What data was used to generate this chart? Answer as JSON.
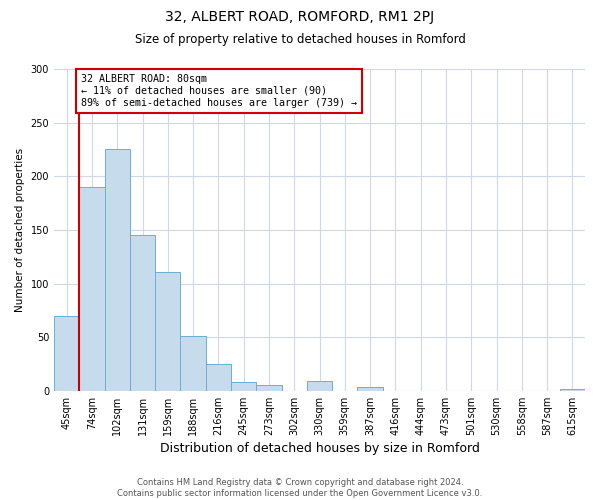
{
  "title": "32, ALBERT ROAD, ROMFORD, RM1 2PJ",
  "subtitle": "Size of property relative to detached houses in Romford",
  "xlabel": "Distribution of detached houses by size in Romford",
  "ylabel": "Number of detached properties",
  "bar_labels": [
    "45sqm",
    "74sqm",
    "102sqm",
    "131sqm",
    "159sqm",
    "188sqm",
    "216sqm",
    "245sqm",
    "273sqm",
    "302sqm",
    "330sqm",
    "359sqm",
    "387sqm",
    "416sqm",
    "444sqm",
    "473sqm",
    "501sqm",
    "530sqm",
    "558sqm",
    "587sqm",
    "615sqm"
  ],
  "bar_heights": [
    70,
    190,
    225,
    145,
    111,
    51,
    25,
    8,
    5,
    0,
    9,
    0,
    4,
    0,
    0,
    0,
    0,
    0,
    0,
    0,
    2
  ],
  "bar_color": "#c6dcec",
  "bar_edge_color": "#6baed6",
  "property_line_x": 1.0,
  "annotation_title": "32 ALBERT ROAD: 80sqm",
  "annotation_line1": "← 11% of detached houses are smaller (90)",
  "annotation_line2": "89% of semi-detached houses are larger (739) →",
  "annotation_box_color": "#ffffff",
  "annotation_box_edge_color": "#cc0000",
  "vline_color": "#cc0000",
  "ylim": [
    0,
    300
  ],
  "yticks": [
    0,
    50,
    100,
    150,
    200,
    250,
    300
  ],
  "footer_line1": "Contains HM Land Registry data © Crown copyright and database right 2024.",
  "footer_line2": "Contains public sector information licensed under the Open Government Licence v3.0.",
  "background_color": "#ffffff",
  "grid_color": "#d0d8e4",
  "title_fontsize": 10,
  "subtitle_fontsize": 8.5,
  "xlabel_fontsize": 9,
  "ylabel_fontsize": 7.5,
  "tick_fontsize": 7,
  "footer_fontsize": 6
}
